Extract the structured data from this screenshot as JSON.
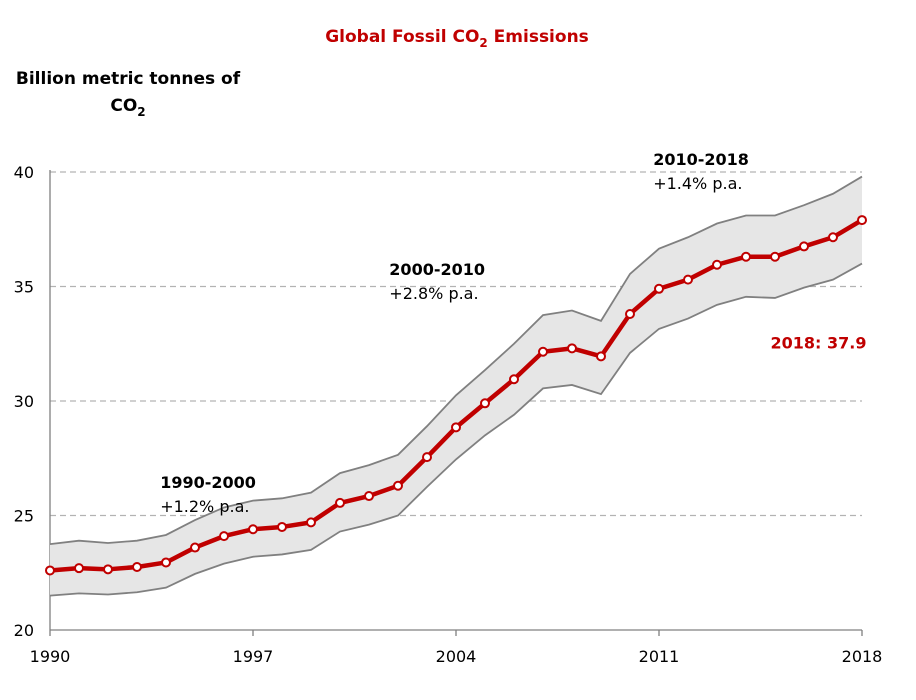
{
  "chart_data": {
    "type": "line",
    "title": {
      "main": "Global Fossil CO",
      "sub": "2",
      "rest": " Emissions"
    },
    "ylabel": {
      "line1": "Billion metric tonnes of",
      "line2_main": "CO",
      "line2_sub": "2"
    },
    "x": [
      1990,
      1991,
      1992,
      1993,
      1994,
      1995,
      1996,
      1997,
      1998,
      1999,
      2000,
      2001,
      2002,
      2003,
      2004,
      2005,
      2006,
      2007,
      2008,
      2009,
      2010,
      2011,
      2012,
      2013,
      2014,
      2015,
      2016,
      2017,
      2018
    ],
    "series": [
      {
        "values": [
          22.6,
          22.7,
          22.65,
          22.75,
          22.95,
          23.6,
          24.1,
          24.4,
          24.5,
          24.7,
          25.55,
          25.85,
          26.3,
          27.55,
          28.85,
          29.9,
          30.95,
          32.15,
          32.3,
          31.95,
          33.8,
          34.9,
          35.3,
          35.95,
          36.3,
          36.3,
          36.75,
          37.15,
          37.9
        ],
        "color": "#c00000"
      }
    ],
    "band": {
      "upper": [
        23.75,
        23.9,
        23.8,
        23.9,
        24.15,
        24.8,
        25.35,
        25.65,
        25.75,
        26.0,
        26.85,
        27.2,
        27.65,
        28.9,
        30.25,
        31.35,
        32.5,
        33.75,
        33.95,
        33.5,
        35.55,
        36.65,
        37.15,
        37.75,
        38.1,
        38.1,
        38.55,
        39.05,
        39.8
      ],
      "lower": [
        21.5,
        21.6,
        21.55,
        21.65,
        21.85,
        22.45,
        22.9,
        23.2,
        23.3,
        23.5,
        24.3,
        24.6,
        25.0,
        26.25,
        27.45,
        28.5,
        29.4,
        30.55,
        30.7,
        30.3,
        32.1,
        33.15,
        33.6,
        34.2,
        34.55,
        34.5,
        34.95,
        35.3,
        36.0
      ],
      "fill": "#e6e6e6",
      "stroke": "#808080"
    },
    "ylim": [
      20,
      40
    ],
    "yticks": [
      "20",
      "25",
      "30",
      "35",
      "40"
    ],
    "xlim": [
      1990,
      2018
    ],
    "xticks": [
      "1990",
      "1997",
      "2004",
      "2011",
      "2018"
    ],
    "grid": "horizontal-dashed",
    "annotations": [
      {
        "head": "1990-2000",
        "rate": "+1.2% p.a.",
        "anchor_year": 1993.8,
        "anchor_value": 26.2
      },
      {
        "head": "2000-2010",
        "rate": "+2.8% p.a.",
        "anchor_year": 2001.7,
        "anchor_value": 35.5
      },
      {
        "head": "2010-2018",
        "rate": "+1.4% p.a.",
        "anchor_year": 2010.8,
        "anchor_value": 40.3
      }
    ],
    "final_label": {
      "text": "2018: 37.9",
      "anchor_year": 2016.5,
      "anchor_value": 32.3
    }
  },
  "colors": {
    "accent": "#c00000",
    "band_fill": "#e6e6e6",
    "band_edge": "#808080",
    "grid": "#b3b3b3",
    "axis": "#808080"
  }
}
